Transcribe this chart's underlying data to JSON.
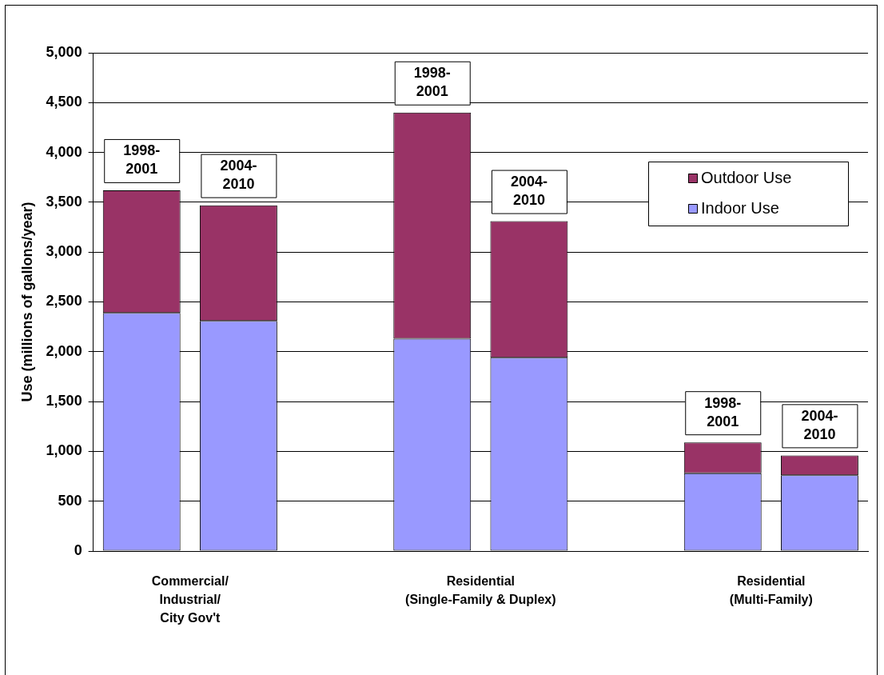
{
  "chart_data": {
    "type": "bar",
    "stacked": true,
    "ylabel": "Use (millions of gallons/year)",
    "categories": [
      "1998-2001",
      "2004-2010",
      null,
      "1998-2001",
      "2004-2010",
      null,
      "1998-2001",
      "2004-2010"
    ],
    "series": [
      {
        "name": "Indoor Use",
        "color": "#9999ff",
        "values": [
          2390,
          2310,
          null,
          2130,
          1940,
          null,
          780,
          760
        ]
      },
      {
        "name": "Outdoor Use",
        "color": "#993366",
        "values": [
          1230,
          1160,
          null,
          2270,
          1370,
          null,
          310,
          200
        ]
      }
    ],
    "ylim": [
      0,
      5000
    ],
    "yticks": [
      0,
      500,
      {
        "value": 1000,
        "label": "1,000"
      },
      {
        "value": 1500,
        "label": "1,500"
      },
      {
        "value": 2000,
        "label": "2,000"
      },
      {
        "value": 2500,
        "label": "2,500"
      },
      {
        "value": 3000,
        "label": "3,000"
      },
      {
        "value": 3500,
        "label": "3,500"
      },
      {
        "value": 4000,
        "label": "4,000"
      },
      {
        "value": 4500,
        "label": "4,500"
      },
      {
        "value": 5000,
        "label": "5,000"
      }
    ],
    "grid": "y",
    "legend": "top right",
    "annotations": [
      "Commercial/\nIndustrial/\nCity Gov't",
      "Residential\n(Single-Family & Duplex)",
      "Residential\n(Multi-Family)"
    ]
  }
}
